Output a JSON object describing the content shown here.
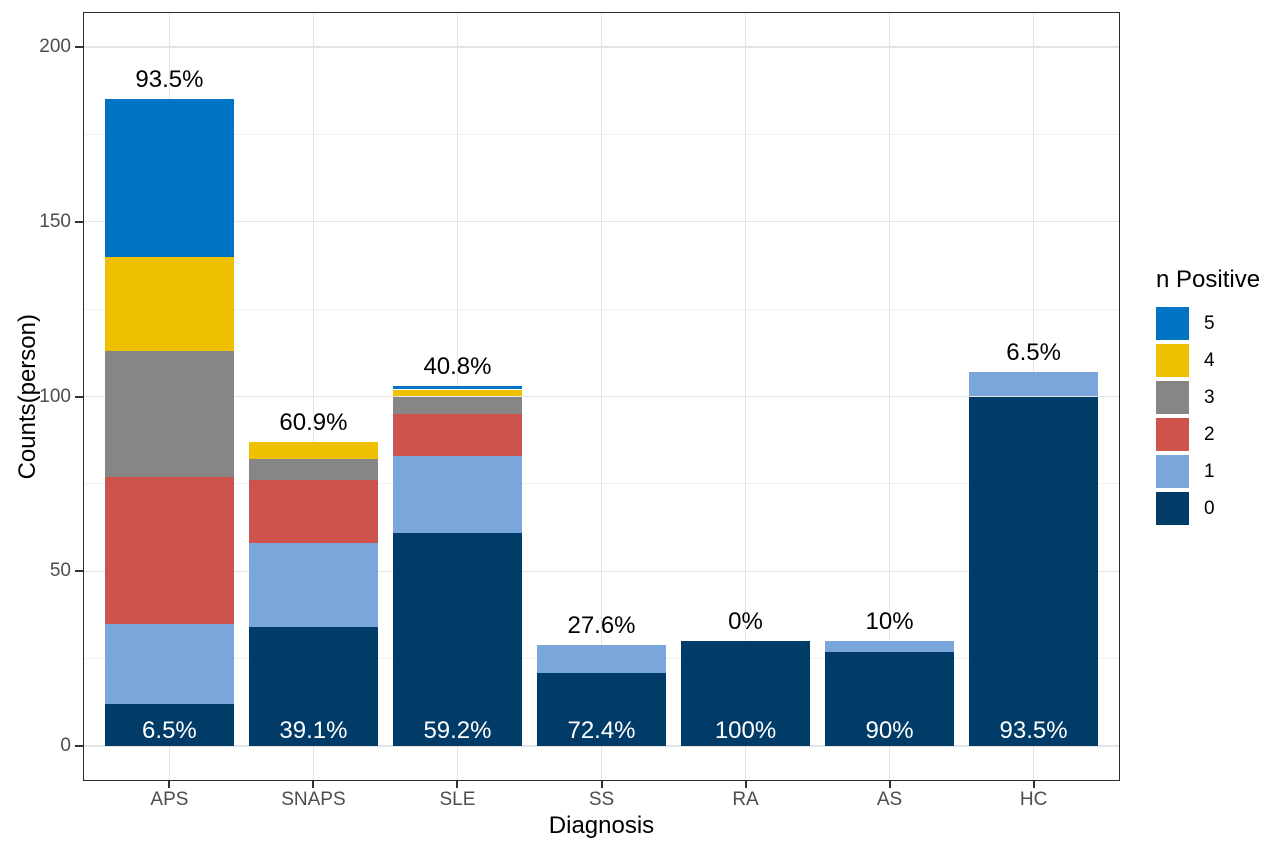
{
  "chart_data": {
    "type": "bar",
    "variant": "stacked",
    "title": "",
    "xlabel": "Diagnosis",
    "ylabel": "Counts(person)",
    "categories": [
      "APS",
      "SNAPS",
      "SLE",
      "SS",
      "RA",
      "AS",
      "HC"
    ],
    "series": [
      {
        "name": "0",
        "color": "#003C67",
        "values": [
          12,
          34,
          61,
          21,
          30,
          27,
          100
        ]
      },
      {
        "name": "1",
        "color": "#7AA6DC",
        "values": [
          23,
          24,
          22,
          8,
          0,
          3,
          7
        ]
      },
      {
        "name": "2",
        "color": "#CD534C",
        "values": [
          42,
          18,
          12,
          0,
          0,
          0,
          0
        ]
      },
      {
        "name": "3",
        "color": "#868686",
        "values": [
          36,
          6,
          5,
          0,
          0,
          0,
          0
        ]
      },
      {
        "name": "4",
        "color": "#EFC000",
        "values": [
          27,
          5,
          2,
          0,
          0,
          0,
          0
        ]
      },
      {
        "name": "5",
        "color": "#0073C2",
        "values": [
          45,
          0,
          1,
          0,
          0,
          0,
          0
        ]
      }
    ],
    "totals": [
      185,
      87,
      103,
      29,
      30,
      30,
      107
    ],
    "top_labels": [
      "93.5%",
      "60.9%",
      "40.8%",
      "27.6%",
      "0%",
      "10%",
      "6.5%"
    ],
    "inside_labels": [
      "6.5%",
      "39.1%",
      "59.2%",
      "72.4%",
      "100%",
      "90%",
      "93.5%"
    ],
    "y_ticks": [
      0,
      50,
      100,
      150,
      200
    ],
    "y_minor_gridlines": [
      25,
      75,
      125,
      175
    ],
    "ylim": [
      0,
      200
    ],
    "grid": true,
    "legend": {
      "title": "n Positive",
      "position": "right",
      "entries": [
        "5",
        "4",
        "3",
        "2",
        "1",
        "0"
      ]
    },
    "style": {
      "grid_major": "#e4e4e4",
      "grid_minor": "#f1f1f1",
      "panel_border": "#2b2b2b",
      "axis_text": "#4d4d4d",
      "label_dark": "#000000",
      "label_light": "#ffffff"
    }
  }
}
